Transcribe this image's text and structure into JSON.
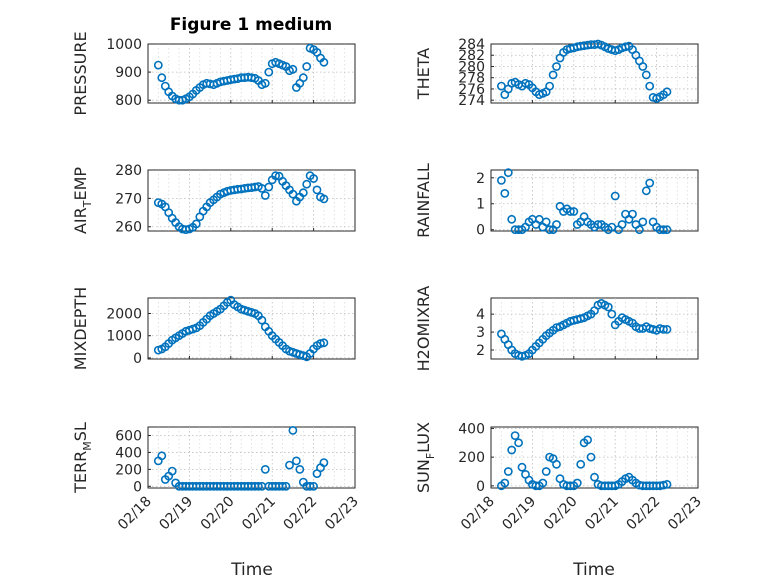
{
  "figure": {
    "title": "Figure 1 medium",
    "xlabel": "Time",
    "x_ticks": [
      "02/18",
      "02/19",
      "02/20",
      "02/21",
      "02/22",
      "02/23"
    ],
    "colors": {
      "marker": "#0072bd",
      "axis": "#262626",
      "grid": "#bdbdbd"
    }
  },
  "chart_data": [
    {
      "type": "scatter",
      "ylabel": "PRESSURE",
      "ylabel_sub": "",
      "ylim": [
        790,
        1000
      ],
      "yticks": [
        "800",
        "900",
        "1000"
      ],
      "ytick_values": [
        800,
        900,
        1000
      ],
      "grid": true,
      "x": [
        "02/18 06:00",
        "02/18 08:00",
        "02/18 10:00",
        "02/18 12:00",
        "02/18 14:00",
        "02/18 16:00",
        "02/18 18:00",
        "02/18 20:00",
        "02/18 22:00",
        "02/19 00:00",
        "02/19 02:00",
        "02/19 04:00",
        "02/19 06:00",
        "02/19 08:00",
        "02/19 10:00",
        "02/19 12:00",
        "02/19 14:00",
        "02/19 16:00",
        "02/19 18:00",
        "02/19 20:00",
        "02/19 22:00",
        "02/20 00:00",
        "02/20 02:00",
        "02/20 04:00",
        "02/20 06:00",
        "02/20 08:00",
        "02/20 10:00",
        "02/20 12:00",
        "02/20 14:00",
        "02/20 16:00",
        "02/20 18:00",
        "02/20 20:00",
        "02/20 22:00",
        "02/21 00:00",
        "02/21 02:00",
        "02/21 04:00",
        "02/21 06:00",
        "02/21 08:00",
        "02/21 10:00",
        "02/21 12:00",
        "02/21 14:00",
        "02/21 16:00",
        "02/21 18:00",
        "02/21 20:00",
        "02/21 22:00",
        "02/22 00:00",
        "02/22 02:00",
        "02/22 04:00",
        "02/22 06:00"
      ],
      "values": [
        925,
        880,
        850,
        830,
        815,
        805,
        800,
        800,
        805,
        812,
        822,
        835,
        845,
        855,
        860,
        858,
        855,
        860,
        865,
        868,
        870,
        873,
        875,
        877,
        880,
        880,
        882,
        880,
        878,
        870,
        855,
        860,
        900,
        930,
        935,
        930,
        925,
        920,
        905,
        910,
        845,
        860,
        880,
        920,
        985,
        980,
        970,
        950,
        935
      ]
    },
    {
      "type": "scatter",
      "ylabel": "THETA",
      "ylabel_sub": "",
      "ylim": [
        273.5,
        284
      ],
      "yticks": [
        "274",
        "276",
        "278",
        "280",
        "282",
        "284"
      ],
      "ytick_values": [
        274,
        276,
        278,
        280,
        282,
        284
      ],
      "grid": true,
      "x": [
        "02/18 06:00",
        "02/18 08:00",
        "02/18 10:00",
        "02/18 12:00",
        "02/18 14:00",
        "02/18 16:00",
        "02/18 18:00",
        "02/18 20:00",
        "02/18 22:00",
        "02/19 00:00",
        "02/19 02:00",
        "02/19 04:00",
        "02/19 06:00",
        "02/19 08:00",
        "02/19 10:00",
        "02/19 12:00",
        "02/19 14:00",
        "02/19 16:00",
        "02/19 18:00",
        "02/19 20:00",
        "02/19 22:00",
        "02/20 00:00",
        "02/20 02:00",
        "02/20 04:00",
        "02/20 06:00",
        "02/20 08:00",
        "02/20 10:00",
        "02/20 12:00",
        "02/20 14:00",
        "02/20 16:00",
        "02/20 18:00",
        "02/20 20:00",
        "02/20 22:00",
        "02/21 00:00",
        "02/21 02:00",
        "02/21 04:00",
        "02/21 06:00",
        "02/21 08:00",
        "02/21 10:00",
        "02/21 12:00",
        "02/21 14:00",
        "02/21 16:00",
        "02/21 18:00",
        "02/21 20:00",
        "02/21 22:00",
        "02/22 00:00",
        "02/22 02:00",
        "02/22 04:00",
        "02/22 06:00"
      ],
      "values": [
        276.5,
        275,
        276,
        277,
        277.2,
        276.8,
        276.5,
        277,
        276.8,
        276.2,
        275.5,
        275,
        275.2,
        275.5,
        276.5,
        278.5,
        280,
        281.5,
        282.5,
        283,
        283.2,
        283.3,
        283.5,
        283.6,
        283.7,
        283.8,
        283.9,
        283.9,
        284,
        283.8,
        283.5,
        283.2,
        283,
        282.8,
        283,
        283.3,
        283.5,
        283.6,
        283,
        282,
        281,
        280,
        278.5,
        276.5,
        274.5,
        274.3,
        274.6,
        275,
        275.5
      ]
    },
    {
      "type": "scatter",
      "ylabel": "AIR",
      "ylabel_sub": "T",
      "ylabel_rest": "EMP",
      "ylim": [
        258.5,
        280
      ],
      "yticks": [
        "260",
        "270",
        "280"
      ],
      "ytick_values": [
        260,
        270,
        280
      ],
      "grid": true,
      "x": [
        "02/18 06:00",
        "02/18 08:00",
        "02/18 10:00",
        "02/18 12:00",
        "02/18 14:00",
        "02/18 16:00",
        "02/18 18:00",
        "02/18 20:00",
        "02/18 22:00",
        "02/19 00:00",
        "02/19 02:00",
        "02/19 04:00",
        "02/19 06:00",
        "02/19 08:00",
        "02/19 10:00",
        "02/19 12:00",
        "02/19 14:00",
        "02/19 16:00",
        "02/19 18:00",
        "02/19 20:00",
        "02/19 22:00",
        "02/20 00:00",
        "02/20 02:00",
        "02/20 04:00",
        "02/20 06:00",
        "02/20 08:00",
        "02/20 10:00",
        "02/20 12:00",
        "02/20 14:00",
        "02/20 16:00",
        "02/20 18:00",
        "02/20 20:00",
        "02/20 22:00",
        "02/21 00:00",
        "02/21 02:00",
        "02/21 04:00",
        "02/21 06:00",
        "02/21 08:00",
        "02/21 10:00",
        "02/21 12:00",
        "02/21 14:00",
        "02/21 16:00",
        "02/21 18:00",
        "02/21 20:00",
        "02/21 22:00",
        "02/22 00:00",
        "02/22 02:00",
        "02/22 04:00",
        "02/22 06:00"
      ],
      "values": [
        268.5,
        268,
        267,
        265,
        263,
        261.5,
        260,
        259.2,
        259,
        259.2,
        259.8,
        261,
        263.5,
        265.5,
        267,
        268.5,
        269.5,
        270.5,
        271.5,
        272,
        272.5,
        272.8,
        273,
        273.2,
        273.3,
        273.5,
        273.7,
        273.8,
        274,
        274.2,
        273.5,
        271,
        274,
        276.5,
        278,
        277.8,
        276,
        274.5,
        273,
        271.5,
        269,
        270.5,
        272,
        275,
        278,
        277,
        273,
        270.5,
        269.8
      ]
    },
    {
      "type": "scatter",
      "ylabel": "RAINFALL",
      "ylabel_sub": "",
      "ylim": [
        -0.05,
        2.3
      ],
      "yticks": [
        "0",
        "1",
        "2"
      ],
      "ytick_values": [
        0,
        1,
        2
      ],
      "grid": true,
      "x": [
        "02/18 06:00",
        "02/18 08:00",
        "02/18 10:00",
        "02/18 12:00",
        "02/18 14:00",
        "02/18 16:00",
        "02/18 18:00",
        "02/18 20:00",
        "02/18 22:00",
        "02/19 00:00",
        "02/19 02:00",
        "02/19 04:00",
        "02/19 06:00",
        "02/19 08:00",
        "02/19 10:00",
        "02/19 12:00",
        "02/19 14:00",
        "02/19 16:00",
        "02/19 18:00",
        "02/19 20:00",
        "02/19 22:00",
        "02/20 00:00",
        "02/20 02:00",
        "02/20 04:00",
        "02/20 06:00",
        "02/20 08:00",
        "02/20 10:00",
        "02/20 12:00",
        "02/20 14:00",
        "02/20 16:00",
        "02/20 18:00",
        "02/20 20:00",
        "02/20 22:00",
        "02/21 00:00",
        "02/21 02:00",
        "02/21 04:00",
        "02/21 06:00",
        "02/21 08:00",
        "02/21 10:00",
        "02/21 12:00",
        "02/21 14:00",
        "02/21 16:00",
        "02/21 18:00",
        "02/21 20:00",
        "02/21 22:00",
        "02/22 00:00",
        "02/22 02:00",
        "02/22 04:00",
        "02/22 06:00"
      ],
      "values": [
        1.9,
        1.4,
        2.2,
        0.4,
        0,
        0,
        0,
        0.1,
        0.3,
        0.4,
        0.2,
        0.4,
        0.1,
        0.3,
        0,
        0,
        0.2,
        0.9,
        0.7,
        0.8,
        0.7,
        0.7,
        0.2,
        0.3,
        0.5,
        0.3,
        0.2,
        0.1,
        0.2,
        0.2,
        0.1,
        0,
        0.1,
        1.3,
        0,
        0.2,
        0.6,
        0.4,
        0.6,
        0.2,
        0,
        0.3,
        1.5,
        1.8,
        0.3,
        0.1,
        0,
        0,
        0
      ]
    },
    {
      "type": "scatter",
      "ylabel": "MIXDEPTH",
      "ylabel_sub": "",
      "ylim": [
        -50,
        2700
      ],
      "yticks": [
        "0",
        "1000",
        "2000"
      ],
      "ytick_values": [
        0,
        1000,
        2000
      ],
      "grid": true,
      "x": [
        "02/18 06:00",
        "02/18 08:00",
        "02/18 10:00",
        "02/18 12:00",
        "02/18 14:00",
        "02/18 16:00",
        "02/18 18:00",
        "02/18 20:00",
        "02/18 22:00",
        "02/19 00:00",
        "02/19 02:00",
        "02/19 04:00",
        "02/19 06:00",
        "02/19 08:00",
        "02/19 10:00",
        "02/19 12:00",
        "02/19 14:00",
        "02/19 16:00",
        "02/19 18:00",
        "02/19 20:00",
        "02/19 22:00",
        "02/20 00:00",
        "02/20 02:00",
        "02/20 04:00",
        "02/20 06:00",
        "02/20 08:00",
        "02/20 10:00",
        "02/20 12:00",
        "02/20 14:00",
        "02/20 16:00",
        "02/20 18:00",
        "02/20 20:00",
        "02/20 22:00",
        "02/21 00:00",
        "02/21 02:00",
        "02/21 04:00",
        "02/21 06:00",
        "02/21 08:00",
        "02/21 10:00",
        "02/21 12:00",
        "02/21 14:00",
        "02/21 16:00",
        "02/21 18:00",
        "02/21 20:00",
        "02/21 22:00",
        "02/22 00:00",
        "02/22 02:00",
        "02/22 04:00",
        "02/22 06:00"
      ],
      "values": [
        350,
        400,
        500,
        650,
        800,
        900,
        1000,
        1100,
        1200,
        1250,
        1300,
        1350,
        1450,
        1600,
        1750,
        1900,
        2000,
        2100,
        2200,
        2350,
        2500,
        2600,
        2400,
        2300,
        2200,
        2150,
        2100,
        2050,
        2000,
        1900,
        1700,
        1400,
        1200,
        1000,
        850,
        700,
        550,
        400,
        300,
        250,
        200,
        150,
        100,
        50,
        200,
        400,
        550,
        650,
        680
      ]
    },
    {
      "type": "scatter",
      "ylabel": "H2OMIXRA",
      "ylabel_sub": "",
      "ylim": [
        1.5,
        4.9
      ],
      "yticks": [
        "2",
        "3",
        "4"
      ],
      "ytick_values": [
        2,
        3,
        4
      ],
      "grid": true,
      "x": [
        "02/18 06:00",
        "02/18 08:00",
        "02/18 10:00",
        "02/18 12:00",
        "02/18 14:00",
        "02/18 16:00",
        "02/18 18:00",
        "02/18 20:00",
        "02/18 22:00",
        "02/19 00:00",
        "02/19 02:00",
        "02/19 04:00",
        "02/19 06:00",
        "02/19 08:00",
        "02/19 10:00",
        "02/19 12:00",
        "02/19 14:00",
        "02/19 16:00",
        "02/19 18:00",
        "02/19 20:00",
        "02/19 22:00",
        "02/20 00:00",
        "02/20 02:00",
        "02/20 04:00",
        "02/20 06:00",
        "02/20 08:00",
        "02/20 10:00",
        "02/20 12:00",
        "02/20 14:00",
        "02/20 16:00",
        "02/20 18:00",
        "02/20 20:00",
        "02/20 22:00",
        "02/21 00:00",
        "02/21 02:00",
        "02/21 04:00",
        "02/21 06:00",
        "02/21 08:00",
        "02/21 10:00",
        "02/21 12:00",
        "02/21 14:00",
        "02/21 16:00",
        "02/21 18:00",
        "02/21 20:00",
        "02/21 22:00",
        "02/22 00:00",
        "02/22 02:00",
        "02/22 04:00",
        "02/22 06:00"
      ],
      "values": [
        2.9,
        2.6,
        2.3,
        2.0,
        1.8,
        1.7,
        1.65,
        1.7,
        1.8,
        2.0,
        2.2,
        2.4,
        2.6,
        2.8,
        2.95,
        3.1,
        3.25,
        3.3,
        3.4,
        3.5,
        3.6,
        3.65,
        3.7,
        3.75,
        3.8,
        3.9,
        4.0,
        4.2,
        4.5,
        4.6,
        4.5,
        4.4,
        4.0,
        3.4,
        3.6,
        3.8,
        3.7,
        3.6,
        3.5,
        3.3,
        3.2,
        3.2,
        3.3,
        3.2,
        3.15,
        3.1,
        3.2,
        3.15,
        3.15
      ]
    },
    {
      "type": "scatter",
      "ylabel": "TERR",
      "ylabel_sub": "M",
      "ylabel_rest": "SL",
      "ylim": [
        -20,
        700
      ],
      "yticks": [
        "0",
        "200",
        "400",
        "600"
      ],
      "ytick_values": [
        0,
        200,
        400,
        600
      ],
      "grid": true,
      "x": [
        "02/18 06:00",
        "02/18 08:00",
        "02/18 10:00",
        "02/18 12:00",
        "02/18 14:00",
        "02/18 16:00",
        "02/18 18:00",
        "02/18 20:00",
        "02/18 22:00",
        "02/19 00:00",
        "02/19 02:00",
        "02/19 04:00",
        "02/19 06:00",
        "02/19 08:00",
        "02/19 10:00",
        "02/19 12:00",
        "02/19 14:00",
        "02/19 16:00",
        "02/19 18:00",
        "02/19 20:00",
        "02/19 22:00",
        "02/20 00:00",
        "02/20 02:00",
        "02/20 04:00",
        "02/20 06:00",
        "02/20 08:00",
        "02/20 10:00",
        "02/20 12:00",
        "02/20 14:00",
        "02/20 16:00",
        "02/20 18:00",
        "02/20 20:00",
        "02/20 22:00",
        "02/21 00:00",
        "02/21 02:00",
        "02/21 04:00",
        "02/21 06:00",
        "02/21 08:00",
        "02/21 10:00",
        "02/21 12:00",
        "02/21 14:00",
        "02/21 16:00",
        "02/21 18:00",
        "02/21 20:00",
        "02/21 22:00",
        "02/22 00:00",
        "02/22 02:00",
        "02/22 04:00",
        "02/22 06:00"
      ],
      "values": [
        300,
        360,
        80,
        120,
        180,
        40,
        0,
        0,
        0,
        0,
        0,
        0,
        0,
        0,
        0,
        0,
        0,
        0,
        0,
        0,
        0,
        0,
        0,
        0,
        0,
        0,
        0,
        0,
        0,
        0,
        0,
        200,
        0,
        0,
        0,
        0,
        0,
        0,
        250,
        660,
        300,
        200,
        50,
        0,
        0,
        0,
        150,
        220,
        280
      ]
    },
    {
      "type": "scatter",
      "ylabel": "SUN",
      "ylabel_sub": "F",
      "ylabel_rest": "LUX",
      "ylim": [
        -15,
        410
      ],
      "yticks": [
        "0",
        "200",
        "400"
      ],
      "ytick_values": [
        0,
        200,
        400
      ],
      "grid": true,
      "x": [
        "02/18 06:00",
        "02/18 08:00",
        "02/18 10:00",
        "02/18 12:00",
        "02/18 14:00",
        "02/18 16:00",
        "02/18 18:00",
        "02/18 20:00",
        "02/18 22:00",
        "02/19 00:00",
        "02/19 02:00",
        "02/19 04:00",
        "02/19 06:00",
        "02/19 08:00",
        "02/19 10:00",
        "02/19 12:00",
        "02/19 14:00",
        "02/19 16:00",
        "02/19 18:00",
        "02/19 20:00",
        "02/19 22:00",
        "02/20 00:00",
        "02/20 02:00",
        "02/20 04:00",
        "02/20 06:00",
        "02/20 08:00",
        "02/20 10:00",
        "02/20 12:00",
        "02/20 14:00",
        "02/20 16:00",
        "02/20 18:00",
        "02/20 20:00",
        "02/20 22:00",
        "02/21 00:00",
        "02/21 02:00",
        "02/21 04:00",
        "02/21 06:00",
        "02/21 08:00",
        "02/21 10:00",
        "02/21 12:00",
        "02/21 14:00",
        "02/21 16:00",
        "02/21 18:00",
        "02/21 20:00",
        "02/21 22:00",
        "02/22 00:00",
        "02/22 02:00",
        "02/22 04:00",
        "02/22 06:00"
      ],
      "values": [
        0,
        20,
        100,
        250,
        350,
        300,
        130,
        80,
        40,
        10,
        0,
        0,
        20,
        100,
        200,
        190,
        150,
        50,
        10,
        0,
        0,
        0,
        20,
        150,
        300,
        320,
        200,
        60,
        10,
        0,
        0,
        0,
        0,
        0,
        10,
        30,
        50,
        60,
        40,
        20,
        5,
        0,
        0,
        0,
        0,
        0,
        0,
        5,
        10
      ]
    }
  ]
}
